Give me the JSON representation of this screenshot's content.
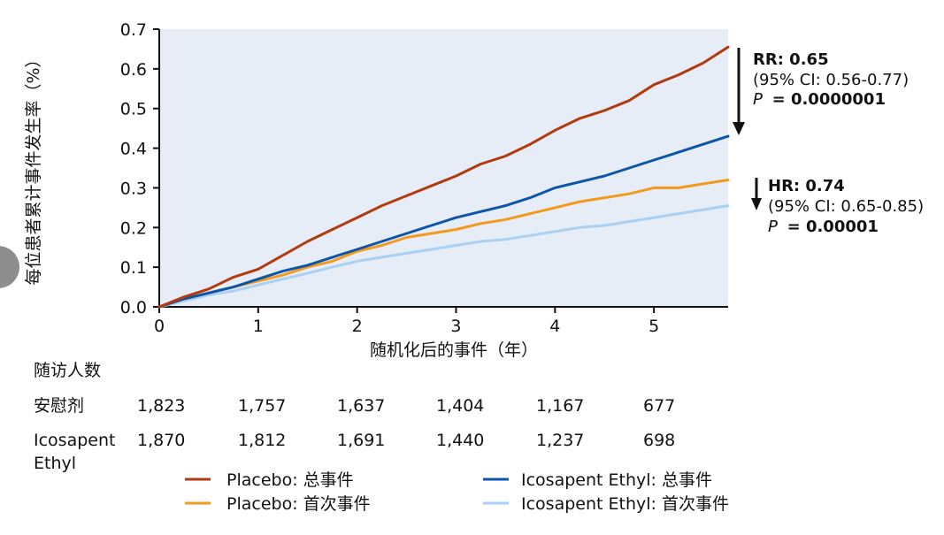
{
  "chart_data": {
    "type": "line",
    "ylabel": "每位患者累计事件发生率（%）",
    "xlabel": "随机化后的事件（年）",
    "xlim": [
      0,
      5.75
    ],
    "ylim": [
      0,
      0.7
    ],
    "x_ticks": [
      "0",
      "1",
      "2",
      "3",
      "4",
      "5"
    ],
    "y_ticks": [
      "0.0",
      "0.1",
      "0.2",
      "0.3",
      "0.4",
      "0.5",
      "0.6",
      "0.7"
    ],
    "plot_background": "#e6edf7",
    "grid": false,
    "series": [
      {
        "name": "Placebo: 总事件",
        "color": "#b23a0f",
        "x": [
          0,
          0.25,
          0.5,
          0.75,
          1.0,
          1.25,
          1.5,
          1.75,
          2.0,
          2.25,
          2.5,
          2.75,
          3.0,
          3.25,
          3.5,
          3.75,
          4.0,
          4.25,
          4.5,
          4.75,
          5.0,
          5.25,
          5.5,
          5.75
        ],
        "y": [
          0,
          0.025,
          0.045,
          0.075,
          0.095,
          0.13,
          0.165,
          0.195,
          0.225,
          0.255,
          0.28,
          0.305,
          0.33,
          0.36,
          0.38,
          0.41,
          0.445,
          0.475,
          0.495,
          0.52,
          0.56,
          0.585,
          0.615,
          0.655
        ]
      },
      {
        "name": "Placebo: 首次事件",
        "color": "#f39a1d",
        "x": [
          0,
          0.25,
          0.5,
          0.75,
          1.0,
          1.25,
          1.5,
          1.75,
          2.0,
          2.25,
          2.5,
          2.75,
          3.0,
          3.25,
          3.5,
          3.75,
          4.0,
          4.25,
          4.5,
          4.75,
          5.0,
          5.25,
          5.5,
          5.75
        ],
        "y": [
          0,
          0.02,
          0.035,
          0.05,
          0.065,
          0.08,
          0.1,
          0.115,
          0.14,
          0.155,
          0.175,
          0.185,
          0.195,
          0.21,
          0.22,
          0.235,
          0.25,
          0.265,
          0.275,
          0.285,
          0.3,
          0.3,
          0.31,
          0.32
        ]
      },
      {
        "name": "Icosapent Ethyl: 总事件",
        "color": "#0d55a6",
        "x": [
          0,
          0.25,
          0.5,
          0.75,
          1.0,
          1.25,
          1.5,
          1.75,
          2.0,
          2.25,
          2.5,
          2.75,
          3.0,
          3.25,
          3.5,
          3.75,
          4.0,
          4.25,
          4.5,
          4.75,
          5.0,
          5.25,
          5.5,
          5.75
        ],
        "y": [
          0,
          0.02,
          0.035,
          0.05,
          0.07,
          0.09,
          0.105,
          0.125,
          0.145,
          0.165,
          0.185,
          0.205,
          0.225,
          0.24,
          0.255,
          0.275,
          0.3,
          0.315,
          0.33,
          0.35,
          0.37,
          0.39,
          0.41,
          0.43
        ]
      },
      {
        "name": "Icosapent Ethyl: 首次事件",
        "color": "#a9d0f5",
        "x": [
          0,
          0.25,
          0.5,
          0.75,
          1.0,
          1.25,
          1.5,
          1.75,
          2.0,
          2.25,
          2.5,
          2.75,
          3.0,
          3.25,
          3.5,
          3.75,
          4.0,
          4.25,
          4.5,
          4.75,
          5.0,
          5.25,
          5.5,
          5.75
        ],
        "y": [
          0,
          0.015,
          0.03,
          0.04,
          0.055,
          0.07,
          0.085,
          0.1,
          0.115,
          0.125,
          0.135,
          0.145,
          0.155,
          0.165,
          0.17,
          0.18,
          0.19,
          0.2,
          0.205,
          0.215,
          0.225,
          0.235,
          0.245,
          0.255
        ]
      }
    ],
    "annotations": [
      {
        "line1": "RR: 0.65",
        "line2": "(95% CI: 0.56-0.77)",
        "p_label": "P",
        "p_value": "= 0.0000001"
      },
      {
        "line1": "HR: 0.74",
        "line2": "(95% CI: 0.65-0.85)",
        "p_label": "P",
        "p_value": "= 0.00001"
      }
    ]
  },
  "followup": {
    "title": "随访人数",
    "rows": [
      {
        "label": "安慰剂",
        "values": [
          "1,823",
          "1,757",
          "1,637",
          "1,404",
          "1,167",
          "677"
        ]
      },
      {
        "label": "Icosapent Ethyl",
        "values": [
          "1,870",
          "1,812",
          "1,691",
          "1,440",
          "1,237",
          "698"
        ]
      }
    ]
  },
  "legend": [
    {
      "label": "Placebo: 总事件",
      "color": "#b23a0f"
    },
    {
      "label": "Placebo: 首次事件",
      "color": "#f39a1d"
    },
    {
      "label": "Icosapent Ethyl: 总事件",
      "color": "#0d55a6"
    },
    {
      "label": "Icosapent Ethyl: 首次事件",
      "color": "#a9d0f5"
    }
  ],
  "arrow_color": "#111111",
  "side_handle_color": "#8e8e8e"
}
